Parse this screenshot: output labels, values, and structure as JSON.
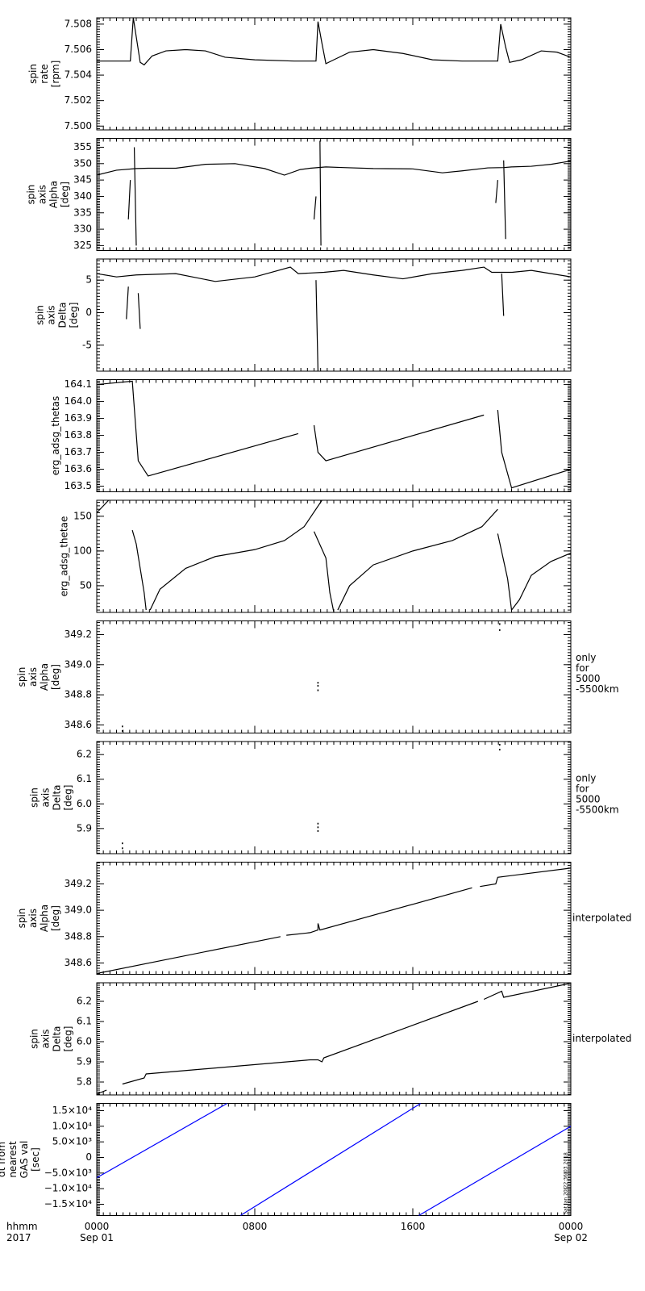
{
  "chart_data": [
    {
      "type": "line",
      "ylabel": [
        "spin",
        "rate",
        "[rpm]"
      ],
      "xlim": [
        0,
        24
      ],
      "xticks": [
        0,
        8,
        16,
        24
      ],
      "ylim": [
        7.4997,
        7.5085
      ],
      "yticks": [
        {
          "value": 7.5,
          "label": "7.500"
        },
        {
          "value": 7.502,
          "label": "7.502"
        },
        {
          "value": 7.504,
          "label": "7.504"
        },
        {
          "value": 7.506,
          "label": "7.506"
        },
        {
          "value": 7.508,
          "label": "7.508"
        }
      ],
      "series": [
        {
          "color": "#000000",
          "x": [
            0,
            1.7,
            1.85,
            2.0,
            2.2,
            2.4,
            2.8,
            3.5,
            4.5,
            5.5,
            6.5,
            8,
            10,
            11.1,
            11.2,
            11.4,
            11.6,
            12,
            12.8,
            14,
            15.5,
            17,
            18.5,
            20.3,
            20.45,
            20.7,
            20.9,
            21.5,
            22.5,
            23.3,
            24
          ],
          "values": [
            7.5051,
            7.5051,
            7.5085,
            7.507,
            7.505,
            7.5048,
            7.5055,
            7.5059,
            7.506,
            7.5059,
            7.5054,
            7.5052,
            7.5051,
            7.5051,
            7.5082,
            7.5065,
            7.5049,
            7.5052,
            7.5058,
            7.506,
            7.5057,
            7.5052,
            7.5051,
            7.5051,
            7.508,
            7.5062,
            7.505,
            7.5052,
            7.5059,
            7.5058,
            7.5054
          ]
        }
      ]
    },
    {
      "type": "line",
      "ylabel": [
        "spin",
        "axis",
        "Alpha",
        "[deg]"
      ],
      "xlim": [
        0,
        24
      ],
      "xticks": [
        0,
        8,
        16,
        24
      ],
      "ylim": [
        323.5,
        357.7
      ],
      "yticks": [
        325,
        330,
        335,
        340,
        345,
        350,
        355
      ],
      "series": [
        {
          "color": "#000000",
          "x": [
            0,
            1,
            2,
            2.6,
            4,
            5.5,
            7,
            8.5,
            9.5,
            10.3,
            10.8,
            11.6,
            12.5,
            14,
            16,
            17.5,
            18.5,
            19.8,
            20.6,
            21,
            22,
            23,
            24
          ],
          "values": [
            346.5,
            348,
            348.5,
            348.6,
            348.6,
            349.8,
            350,
            348.5,
            346.5,
            348.2,
            348.6,
            349,
            348.8,
            348.5,
            348.4,
            347.2,
            347.8,
            348.7,
            348.8,
            349,
            349.2,
            349.8,
            350.8
          ]
        },
        {
          "color": "#000000",
          "x": [
            1.6,
            1.7,
            null,
            1.9,
            2.0,
            null,
            11.0,
            11.1,
            null,
            11.3,
            11.35,
            null,
            20.2,
            20.3,
            null,
            20.6,
            20.7
          ],
          "values": [
            333,
            345,
            null,
            355,
            325,
            null,
            333,
            340,
            null,
            357,
            325,
            null,
            338,
            345,
            null,
            351,
            327
          ]
        }
      ]
    },
    {
      "type": "line",
      "ylabel": [
        "spin",
        "axis",
        "Delta",
        "[deg]"
      ],
      "xlim": [
        0,
        24
      ],
      "xticks": [
        0,
        8,
        16,
        24
      ],
      "ylim": [
        -9,
        8.25
      ],
      "yticks": [
        -5,
        0,
        5
      ],
      "series": [
        {
          "color": "#000000",
          "x": [
            0,
            1,
            2,
            4,
            6,
            8,
            9.8,
            10.2,
            11.5,
            12.5,
            14,
            15.5,
            17,
            18.5,
            19.6,
            20,
            21,
            22,
            23,
            24
          ],
          "values": [
            6,
            5.5,
            5.8,
            6,
            4.8,
            5.5,
            7,
            6,
            6.2,
            6.5,
            5.8,
            5.2,
            6,
            6.5,
            7,
            6.2,
            6.2,
            6.5,
            6,
            5.5
          ]
        },
        {
          "color": "#000000",
          "x": [
            1.5,
            1.6,
            null,
            2.1,
            2.2,
            null,
            11.1,
            11.2,
            null,
            20.5,
            20.6
          ],
          "values": [
            -1,
            4,
            null,
            3,
            -2.5,
            null,
            5,
            -9,
            null,
            6,
            -0.5
          ]
        }
      ]
    },
    {
      "type": "line",
      "ylabel": [
        "erg_adsg_thetas"
      ],
      "xlim": [
        0,
        24
      ],
      "xticks": [
        0,
        8,
        16,
        24
      ],
      "ylim": [
        163.467,
        164.129
      ],
      "yticks": [
        163.5,
        163.6,
        163.7,
        163.8,
        163.9,
        {
          "value": 164.0,
          "label": "164.0"
        },
        164.1
      ],
      "series": [
        {
          "color": "#000000",
          "x": [
            0,
            1.8,
            2.1,
            2.6,
            10.2,
            null,
            11.0,
            11.2,
            11.6,
            19.6,
            null,
            20.3,
            20.5,
            21.0,
            24
          ],
          "values": [
            164.1,
            164.12,
            163.65,
            163.56,
            163.81,
            null,
            163.86,
            163.7,
            163.65,
            163.92,
            null,
            163.95,
            163.7,
            163.49,
            163.6
          ]
        }
      ]
    },
    {
      "type": "line",
      "ylabel": [
        "erg_adsg_thetae"
      ],
      "xlim": [
        0,
        24
      ],
      "xticks": [
        0,
        8,
        16,
        24
      ],
      "ylim": [
        11.6,
        173
      ],
      "yticks": [
        50,
        100,
        150
      ],
      "series": [
        {
          "color": "#000000",
          "x": [
            0,
            0.6,
            null,
            1.8,
            2.0,
            2.4,
            2.5,
            null,
            2.7,
            3.2,
            4.5,
            6,
            8,
            9.5,
            10.5,
            11.4,
            null,
            11.0,
            11.6,
            11.8,
            12.0,
            null,
            12.2,
            12.8,
            14,
            16,
            18,
            19.5,
            20.3,
            null,
            20.3,
            20.8,
            21.0,
            21.4,
            22,
            23,
            24
          ],
          "values": [
            155,
            173,
            null,
            130,
            110,
            40,
            15,
            null,
            15,
            45,
            75,
            92,
            102,
            115,
            135,
            173,
            null,
            128,
            90,
            40,
            12,
            null,
            15,
            50,
            80,
            100,
            115,
            135,
            160,
            null,
            125,
            60,
            15,
            30,
            65,
            85,
            97
          ]
        }
      ]
    },
    {
      "type": "scatter",
      "ylabel": [
        "spin",
        "axis",
        "Alpha",
        "[deg]"
      ],
      "note": [
        "only",
        "for",
        "5000",
        "-5500km"
      ],
      "xlim": [
        0,
        24
      ],
      "xticks": [
        0,
        8,
        16,
        24
      ],
      "ylim": [
        348.546,
        349.291
      ],
      "yticks": [
        348.6,
        348.8,
        {
          "value": 349.0,
          "label": "349.0"
        },
        349.2
      ],
      "series": [
        {
          "color": "#000000",
          "x": [
            1.3,
            1.3,
            11.2,
            11.2,
            11.2,
            20.4,
            20.4
          ],
          "values": [
            348.56,
            348.59,
            348.83,
            348.86,
            348.88,
            349.23,
            349.27
          ]
        }
      ]
    },
    {
      "type": "scatter",
      "ylabel": [
        "spin",
        "axis",
        "Delta",
        "[deg]"
      ],
      "note": [
        "only",
        "for",
        "5000",
        "-5500km"
      ],
      "xlim": [
        0,
        24
      ],
      "xticks": [
        0,
        8,
        16,
        24
      ],
      "ylim": [
        5.798,
        6.253
      ],
      "yticks": [
        5.9,
        {
          "value": 6.0,
          "label": "6.0"
        },
        6.1,
        6.2
      ],
      "series": [
        {
          "color": "#000000",
          "x": [
            1.3,
            1.3,
            11.2,
            11.2,
            11.2,
            20.4,
            20.4
          ],
          "values": [
            5.82,
            5.84,
            5.89,
            5.905,
            5.92,
            6.22,
            6.24
          ]
        }
      ]
    },
    {
      "type": "line",
      "ylabel": [
        "spin",
        "axis",
        "Alpha",
        "[deg]"
      ],
      "note": [
        "interpolated"
      ],
      "xlim": [
        0,
        24
      ],
      "xticks": [
        0,
        8,
        16,
        24
      ],
      "ylim": [
        348.514,
        349.365
      ],
      "yticks": [
        348.6,
        348.8,
        {
          "value": 349.0,
          "label": "349.0"
        },
        349.2
      ],
      "series": [
        {
          "color": "#000000",
          "x": [
            0,
            9.3,
            null,
            9.6,
            10.8,
            11.2,
            11.2,
            11.3,
            19,
            null,
            19.4,
            20.2,
            20.3,
            24
          ],
          "values": [
            348.52,
            348.8,
            null,
            348.81,
            348.83,
            348.85,
            348.9,
            348.85,
            349.17,
            null,
            349.18,
            349.2,
            349.25,
            349.32
          ]
        }
      ]
    },
    {
      "type": "line",
      "ylabel": [
        "spin",
        "axis",
        "Delta",
        "[deg]"
      ],
      "note": [
        "interpolated"
      ],
      "xlim": [
        0,
        24
      ],
      "xticks": [
        0,
        8,
        16,
        24
      ],
      "ylim": [
        5.736,
        6.292
      ],
      "yticks": [
        5.8,
        5.9,
        {
          "value": 6.0,
          "label": "6.0"
        },
        6.1,
        6.2
      ],
      "series": [
        {
          "color": "#000000",
          "x": [
            0,
            0.5,
            null,
            1.3,
            2.4,
            2.5,
            10.8,
            11.2,
            11.4,
            11.5,
            19.3,
            null,
            19.6,
            20.5,
            20.6,
            24
          ],
          "values": [
            5.74,
            5.76,
            null,
            5.79,
            5.82,
            5.84,
            5.91,
            5.91,
            5.9,
            5.92,
            6.2,
            null,
            6.21,
            6.25,
            6.22,
            6.29
          ]
        }
      ]
    },
    {
      "type": "line",
      "ylabel": [
        "dt from",
        "nearest",
        "GAS val",
        "[sec]"
      ],
      "annotation": "Sat Jan 20 22:36:03 2018",
      "xlim": [
        0,
        24
      ],
      "xticks": [
        {
          "value": 0,
          "label": "0000"
        },
        {
          "value": 8,
          "label": "0800"
        },
        {
          "value": 16,
          "label": "1600"
        },
        {
          "value": 24,
          "label": "0000"
        }
      ],
      "xdates": [
        {
          "value": 0,
          "label": "Sep 01"
        },
        {
          "value": 24,
          "label": "Sep 02"
        }
      ],
      "xlabel": [
        "hhmm",
        "2017"
      ],
      "ylim": [
        -18620,
        17327
      ],
      "yticks": [
        {
          "value": -15000,
          "label": "−1.5×10⁴"
        },
        {
          "value": -10000,
          "label": "−1.0×10⁴"
        },
        {
          "value": -5000,
          "label": "−5.0×10³"
        },
        0,
        {
          "value": 5000,
          "label": "5.0×10³"
        },
        {
          "value": 10000,
          "label": "1.0×10⁴"
        },
        {
          "value": 15000,
          "label": "1.5×10⁴"
        }
      ],
      "series": [
        {
          "color": "#0000ff",
          "x": [
            0,
            6.6,
            null,
            7.27,
            16.4,
            null,
            16.3,
            24
          ],
          "values": [
            -6500,
            17327,
            null,
            -18620,
            17327,
            null,
            -18620,
            10000
          ]
        }
      ]
    }
  ]
}
